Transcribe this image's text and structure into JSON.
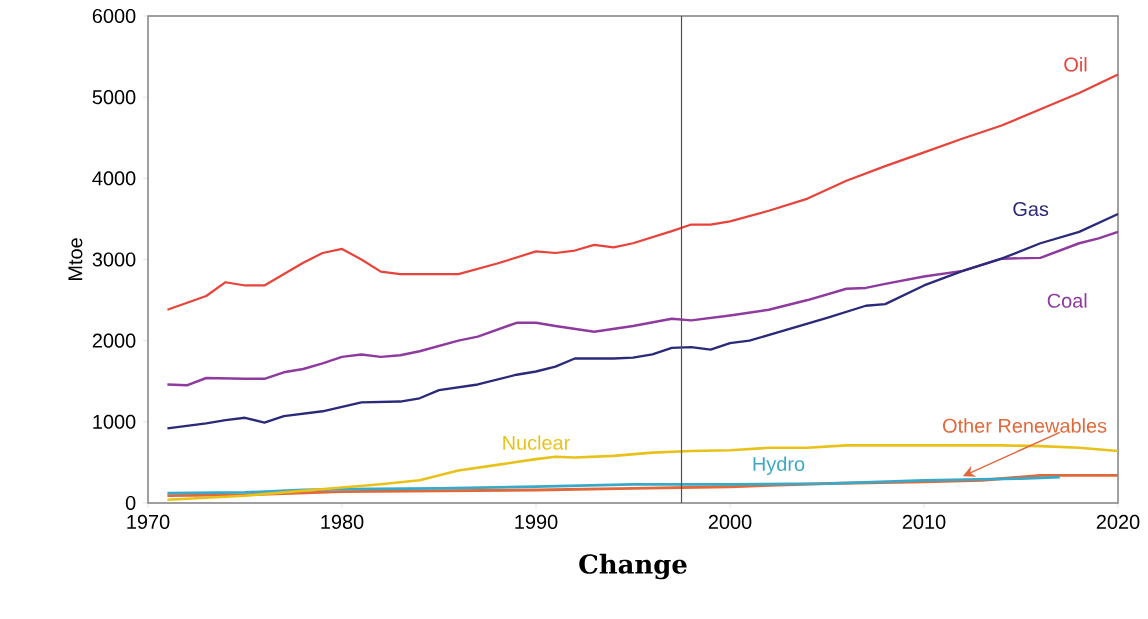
{
  "chart_data": {
    "type": "line",
    "ylabel": "Mtoe",
    "xlim": [
      1970,
      2020
    ],
    "ylim": [
      0,
      6000
    ],
    "xticks": [
      1970,
      1980,
      1990,
      2000,
      2010,
      2020
    ],
    "yticks": [
      0,
      1000,
      2000,
      3000,
      4000,
      5000,
      6000
    ],
    "grid": false,
    "legend": false,
    "marker": "none",
    "line_style": "solid",
    "ref_lines": [
      {
        "axis": "x",
        "value": 1997.5,
        "color": "#505050"
      }
    ],
    "annotations": [
      "Change"
    ],
    "series": [
      {
        "name": "Oil",
        "color": "#e8433a",
        "x": [
          1971,
          1973,
          1974,
          1975,
          1976,
          1978,
          1979,
          1980,
          1981,
          1982,
          1983,
          1986,
          1988,
          1990,
          1991,
          1992,
          1993,
          1994,
          1995,
          1997,
          1998,
          1999,
          2000,
          2002,
          2004,
          2006,
          2008,
          2010,
          2012,
          2014,
          2016,
          2018,
          2020
        ],
        "values": [
          2380,
          2550,
          2720,
          2680,
          2680,
          2960,
          3080,
          3130,
          3000,
          2850,
          2820,
          2820,
          2950,
          3100,
          3080,
          3110,
          3180,
          3150,
          3200,
          3350,
          3430,
          3430,
          3470,
          3600,
          3750,
          3970,
          4150,
          4320,
          4490,
          4650,
          4850,
          5050,
          5280
        ]
      },
      {
        "name": "Gas",
        "color": "#2b2a7a",
        "x": [
          1971,
          1973,
          1974,
          1975,
          1976,
          1977,
          1979,
          1981,
          1983,
          1984,
          1985,
          1987,
          1989,
          1990,
          1991,
          1992,
          1994,
          1995,
          1996,
          1997,
          1998,
          1999,
          2000,
          2001,
          2003,
          2005,
          2007,
          2008,
          2010,
          2012,
          2014,
          2016,
          2018,
          2020
        ],
        "values": [
          920,
          980,
          1020,
          1050,
          990,
          1070,
          1130,
          1240,
          1250,
          1290,
          1390,
          1460,
          1580,
          1620,
          1680,
          1780,
          1780,
          1790,
          1830,
          1910,
          1920,
          1890,
          1970,
          2000,
          2140,
          2280,
          2430,
          2450,
          2680,
          2860,
          3010,
          3200,
          3340,
          3560
        ]
      },
      {
        "name": "Coal",
        "color": "#8e3a9e",
        "x": [
          1971,
          1972,
          1973,
          1975,
          1976,
          1977,
          1978,
          1979,
          1980,
          1981,
          1982,
          1983,
          1984,
          1986,
          1987,
          1989,
          1990,
          1991,
          1993,
          1995,
          1997,
          1998,
          2000,
          2002,
          2004,
          2006,
          2007,
          2008,
          2010,
          2012,
          2014,
          2016,
          2018,
          2019,
          2020
        ],
        "values": [
          1460,
          1450,
          1540,
          1530,
          1530,
          1610,
          1650,
          1720,
          1800,
          1830,
          1800,
          1820,
          1870,
          2000,
          2050,
          2220,
          2220,
          2180,
          2110,
          2180,
          2270,
          2250,
          2310,
          2380,
          2500,
          2640,
          2650,
          2700,
          2790,
          2860,
          3010,
          3020,
          3200,
          3260,
          3340
        ]
      },
      {
        "name": "Nuclear",
        "color": "#e8c21a",
        "x": [
          1971,
          1975,
          1980,
          1982,
          1984,
          1986,
          1988,
          1990,
          1991,
          1992,
          1994,
          1996,
          1998,
          2000,
          2002,
          2004,
          2006,
          2010,
          2014,
          2016,
          2018,
          2020
        ],
        "values": [
          40,
          90,
          190,
          230,
          280,
          400,
          470,
          540,
          570,
          560,
          580,
          620,
          640,
          650,
          680,
          680,
          710,
          710,
          710,
          700,
          680,
          640
        ]
      },
      {
        "name": "Hydro",
        "color": "#3aa9c8",
        "x": [
          1971,
          1975,
          1978,
          1980,
          1985,
          1990,
          1995,
          2000,
          2005,
          2010,
          2015,
          2017
        ],
        "values": [
          120,
          130,
          160,
          170,
          180,
          200,
          230,
          230,
          240,
          280,
          300,
          320
        ]
      },
      {
        "name": "Other Renewables",
        "color": "#e0683a",
        "x": [
          1971,
          1975,
          1980,
          1985,
          1990,
          1995,
          2000,
          2005,
          2010,
          2013,
          2016,
          2020
        ],
        "values": [
          90,
          100,
          140,
          150,
          160,
          180,
          200,
          240,
          260,
          280,
          340,
          340
        ]
      }
    ]
  }
}
